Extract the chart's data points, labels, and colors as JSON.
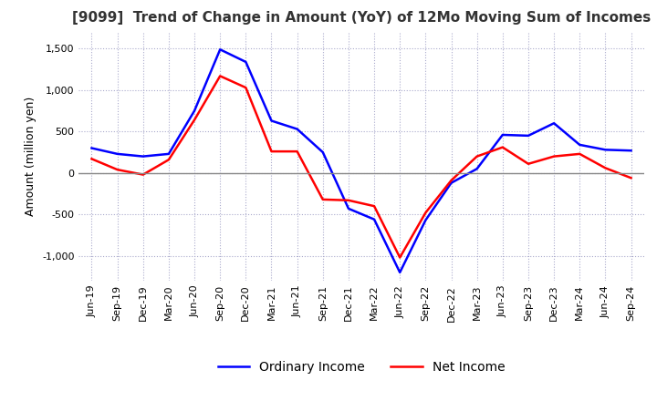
{
  "title": "[9099]  Trend of Change in Amount (YoY) of 12Mo Moving Sum of Incomes",
  "ylabel": "Amount (million yen)",
  "ylim": [
    -1300,
    1700
  ],
  "yticks": [
    -1000,
    -500,
    0,
    500,
    1000,
    1500
  ],
  "x_labels": [
    "Jun-19",
    "Sep-19",
    "Dec-19",
    "Mar-20",
    "Jun-20",
    "Sep-20",
    "Dec-20",
    "Mar-21",
    "Jun-21",
    "Sep-21",
    "Dec-21",
    "Mar-22",
    "Jun-22",
    "Sep-22",
    "Dec-22",
    "Mar-23",
    "Jun-23",
    "Sep-23",
    "Dec-23",
    "Mar-24",
    "Jun-24",
    "Sep-24"
  ],
  "ordinary_income": [
    300,
    230,
    200,
    230,
    750,
    1490,
    1340,
    630,
    530,
    250,
    -430,
    -560,
    -1200,
    -570,
    -120,
    50,
    460,
    450,
    600,
    340,
    280,
    270
  ],
  "net_income": [
    170,
    40,
    -20,
    160,
    640,
    1170,
    1030,
    260,
    260,
    -320,
    -330,
    -400,
    -1020,
    -480,
    -90,
    200,
    310,
    110,
    200,
    230,
    60,
    -60
  ],
  "ordinary_color": "#0000ff",
  "net_color": "#ff0000",
  "grid_color": "#aaaacc",
  "zero_line_color": "#888888",
  "background_color": "#ffffff",
  "title_fontsize": 11,
  "axis_fontsize": 9,
  "tick_fontsize": 8,
  "legend_fontsize": 10
}
